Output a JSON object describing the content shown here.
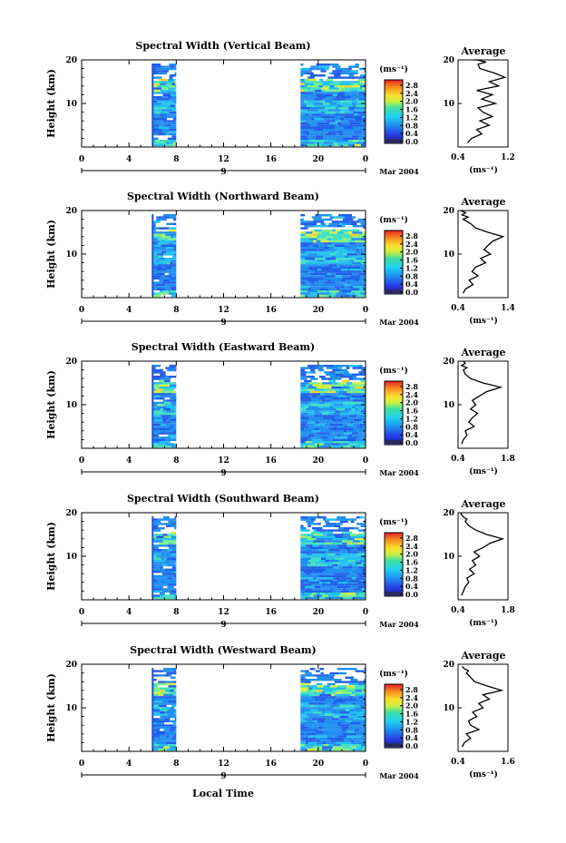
{
  "figure": {
    "x_ticks": [
      "0",
      "4",
      "8",
      "12",
      "16",
      "20",
      "0"
    ],
    "date_tick": "9",
    "date_label": "Mar 2004",
    "xlabel": "Local Time",
    "ylabel": "Height (km)",
    "y_ticks": [
      "20",
      "10"
    ],
    "colorbar_unit": "(ms⁻¹)",
    "colorbar_ticks": [
      "2.8",
      "2.4",
      "2.0",
      "1.6",
      "1.2",
      "0.8",
      "0.4",
      "0.0"
    ],
    "avg_title": "Average",
    "avg_xlabel": "(ms⁻¹)"
  },
  "chart_data": [
    {
      "type": "heatmap",
      "title": "Spectral Width (Vertical Beam)",
      "ylabel": "Height (km)",
      "xlim": [
        0,
        24
      ],
      "ylim": [
        0,
        20
      ],
      "data_segments": [
        [
          6,
          8
        ],
        [
          18.5,
          24
        ]
      ],
      "colorbar_range": [
        0,
        3
      ]
    },
    {
      "type": "line",
      "title": "Average",
      "xlabel": "(ms⁻¹)",
      "xlim": [
        0.4,
        1.2
      ],
      "x_ticks": [
        "0.4",
        "1.2"
      ],
      "y_ticks": [
        "20",
        "10"
      ],
      "x": [
        0.55,
        0.62,
        0.78,
        0.7,
        0.9,
        0.75,
        0.95,
        0.8,
        0.72,
        1.0,
        0.78,
        0.95,
        0.7,
        1.05,
        0.9,
        1.15,
        0.98,
        0.75,
        0.72,
        0.85,
        0.7,
        0.65
      ],
      "y": [
        1,
        2,
        3,
        4,
        5,
        6,
        7,
        8,
        9,
        10,
        11,
        12,
        13,
        14,
        15,
        16,
        17,
        18,
        19,
        19.5,
        20,
        20.5
      ]
    },
    {
      "type": "heatmap",
      "title": "Spectral Width (Northward Beam)",
      "ylabel": "Height (km)",
      "xlim": [
        0,
        24
      ],
      "ylim": [
        0,
        20
      ],
      "data_segments": [
        [
          6,
          8
        ],
        [
          18.5,
          24
        ]
      ],
      "colorbar_range": [
        0,
        3
      ]
    },
    {
      "type": "line",
      "title": "Average",
      "xlabel": "(ms⁻¹)",
      "xlim": [
        0.4,
        1.4
      ],
      "x_ticks": [
        "0.4",
        "1.4"
      ],
      "y_ticks": [
        "20",
        "10"
      ],
      "x": [
        0.5,
        0.55,
        0.7,
        0.62,
        0.8,
        0.68,
        0.75,
        0.95,
        0.85,
        1.05,
        0.92,
        1.0,
        1.1,
        1.3,
        1.0,
        0.75,
        0.65,
        0.5,
        0.6,
        0.48,
        0.55,
        0.45
      ],
      "y": [
        1,
        2,
        3,
        4,
        5,
        6,
        7,
        8,
        9,
        10,
        11,
        12,
        13,
        14,
        15,
        16,
        17,
        18,
        18.5,
        19,
        19.5,
        20
      ]
    },
    {
      "type": "heatmap",
      "title": "Spectral Width (Eastward Beam)",
      "ylabel": "Height (km)",
      "xlim": [
        0,
        24
      ],
      "ylim": [
        0,
        20
      ],
      "data_segments": [
        [
          6,
          8
        ],
        [
          18.5,
          24
        ]
      ],
      "colorbar_range": [
        0,
        3
      ]
    },
    {
      "type": "line",
      "title": "Average",
      "xlabel": "(ms⁻¹)",
      "xlim": [
        0.4,
        1.8
      ],
      "x_ticks": [
        "0.4",
        "1.8"
      ],
      "y_ticks": [
        "20",
        "10"
      ],
      "x": [
        0.5,
        0.55,
        0.65,
        0.6,
        0.85,
        0.7,
        0.8,
        0.95,
        0.75,
        0.9,
        0.8,
        1.0,
        1.2,
        1.6,
        1.1,
        0.75,
        0.6,
        0.55,
        0.65,
        0.5,
        0.6,
        0.55
      ],
      "y": [
        1,
        2,
        3,
        4,
        5,
        6,
        7,
        8,
        9,
        10,
        11,
        12,
        13,
        14,
        15,
        16,
        17,
        18,
        18.5,
        19,
        19.5,
        20
      ]
    },
    {
      "type": "heatmap",
      "title": "Spectral Width (Southward Beam)",
      "ylabel": "Height (km)",
      "xlim": [
        0,
        24
      ],
      "ylim": [
        0,
        20
      ],
      "data_segments": [
        [
          6,
          8
        ],
        [
          18.5,
          24
        ]
      ],
      "colorbar_range": [
        0,
        3
      ]
    },
    {
      "type": "line",
      "title": "Average",
      "xlabel": "(ms⁻¹)",
      "xlim": [
        0.4,
        1.8
      ],
      "x_ticks": [
        "0.4",
        "1.8"
      ],
      "y_ticks": [
        "20",
        "10"
      ],
      "x": [
        0.5,
        0.55,
        0.6,
        0.7,
        0.65,
        0.85,
        0.72,
        0.9,
        0.8,
        1.0,
        0.85,
        1.1,
        1.3,
        1.65,
        1.2,
        0.9,
        0.7,
        0.6,
        0.65,
        0.55,
        0.5,
        0.48
      ],
      "y": [
        1,
        2,
        3,
        4,
        5,
        6,
        7,
        8,
        9,
        10,
        11,
        12,
        13,
        14,
        15,
        16,
        17,
        18,
        18.5,
        19,
        19.5,
        20
      ]
    },
    {
      "type": "heatmap",
      "title": "Spectral Width (Westward Beam)",
      "ylabel": "Height (km)",
      "xlim": [
        0,
        24
      ],
      "ylim": [
        0,
        20
      ],
      "data_segments": [
        [
          6,
          8
        ],
        [
          18.5,
          24
        ]
      ],
      "colorbar_range": [
        0,
        3
      ]
    },
    {
      "type": "line",
      "title": "Average",
      "xlabel": "(ms⁻¹)",
      "xlim": [
        0.4,
        1.6
      ],
      "x_ticks": [
        "0.4",
        "1.6"
      ],
      "y_ticks": [
        "20",
        "10"
      ],
      "x": [
        0.5,
        0.55,
        0.7,
        0.6,
        0.9,
        0.7,
        0.65,
        0.85,
        0.75,
        1.0,
        0.9,
        1.15,
        1.0,
        1.45,
        1.1,
        0.8,
        0.7,
        0.6,
        0.65,
        0.55,
        0.5
      ],
      "y": [
        1,
        2,
        3,
        4,
        5,
        6,
        7,
        8,
        9,
        10,
        11,
        12,
        13,
        14,
        15,
        16,
        17,
        18,
        18.5,
        19,
        19.5
      ]
    }
  ]
}
